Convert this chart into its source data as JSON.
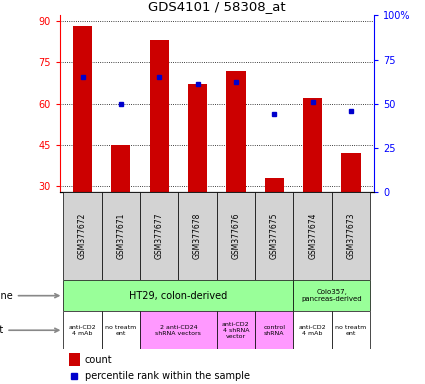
{
  "title": "GDS4101 / 58308_at",
  "samples": [
    "GSM377672",
    "GSM377671",
    "GSM377677",
    "GSM377678",
    "GSM377676",
    "GSM377675",
    "GSM377674",
    "GSM377673"
  ],
  "counts": [
    88,
    45,
    83,
    67,
    72,
    33,
    62,
    42
  ],
  "percentile_ranks": [
    65,
    50,
    65,
    61,
    62,
    44,
    51,
    46
  ],
  "ylim_left": [
    28,
    92
  ],
  "ylim_right": [
    0,
    100
  ],
  "yticks_left": [
    30,
    45,
    60,
    75,
    90
  ],
  "yticks_right": [
    0,
    25,
    50,
    75,
    100
  ],
  "bar_color": "#cc0000",
  "dot_color": "#0000cc",
  "bg_color": "#ffffff",
  "sample_bg": "#d3d3d3",
  "ht29_color": "#99ff99",
  "colo_color": "#99ff99",
  "agent_white": "#ffffff",
  "agent_pink": "#ff99ff",
  "legend_count_color": "#cc0000",
  "legend_pct_color": "#0000cc"
}
